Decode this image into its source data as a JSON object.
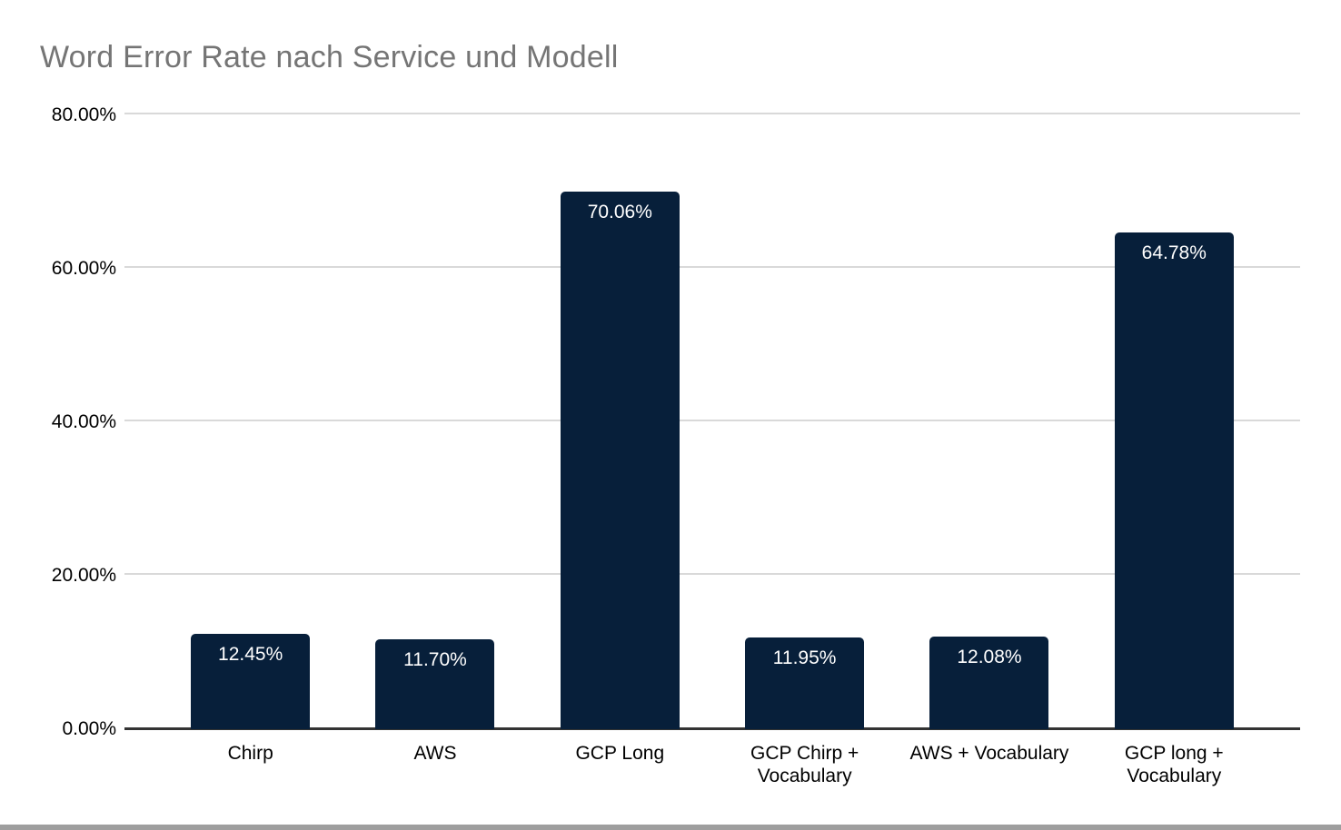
{
  "header": {
    "title": "Word Error Rate nach Service und Modell"
  },
  "colors": {
    "bar": "#071f3a",
    "title_text": "#757575",
    "axis_text": "#000000",
    "gridline": "#d9d9d9",
    "axis_line": "#333333",
    "bar_label_text": "#ffffff",
    "bottom_strip": "#9e9e9e",
    "background": "#ffffff"
  },
  "chart_data": {
    "type": "bar",
    "title": "Word Error Rate nach Service und Modell",
    "xlabel": "",
    "ylabel": "",
    "categories": [
      "Chirp",
      "AWS",
      "GCP Long",
      "GCP Chirp + Vocabulary",
      "AWS + Vocabulary",
      "GCP long + Vocabulary"
    ],
    "values": [
      12.45,
      11.7,
      70.06,
      11.95,
      12.08,
      64.78
    ],
    "value_labels": [
      "12.45%",
      "11.70%",
      "70.06%",
      "11.95%",
      "12.08%",
      "64.78%"
    ],
    "ylim": [
      0,
      80
    ],
    "yticks": [
      0,
      20,
      40,
      60,
      80
    ],
    "ytick_labels": [
      "0.00%",
      "20.00%",
      "40.00%",
      "60.00%",
      "80.00%"
    ],
    "grid": true,
    "legend": false,
    "legend_position": "none"
  }
}
